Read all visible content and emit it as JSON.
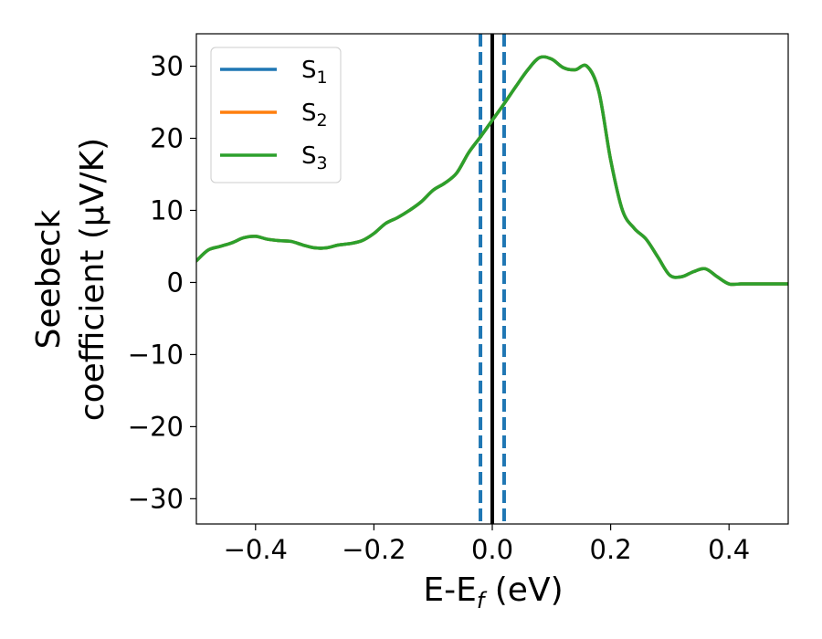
{
  "chart_data": {
    "type": "line",
    "xlabel": {
      "main": "E-E",
      "sub": "f",
      "unit": " (eV)"
    },
    "ylabel": {
      "line1": "Seebeck",
      "line2": "coefficient  (μV/K)"
    },
    "xlim": [
      -0.5,
      0.5
    ],
    "ylim": [
      -33.5,
      34.5
    ],
    "xticks": [
      -0.4,
      -0.2,
      0.0,
      0.2,
      0.4
    ],
    "xtick_labels": [
      "−0.4",
      "−0.2",
      "0.0",
      "0.2",
      "0.4"
    ],
    "yticks": [
      -30,
      -20,
      -10,
      0,
      10,
      20,
      30
    ],
    "ytick_labels": [
      "−30",
      "−20",
      "−10",
      "0",
      "10",
      "20",
      "30"
    ],
    "legend_position": "top-left",
    "vertical_lines": [
      {
        "x": 0.0,
        "style": "solid",
        "color": "#000000"
      },
      {
        "x": -0.02,
        "style": "dashed",
        "color": "#1f77b4"
      },
      {
        "x": 0.02,
        "style": "dashed",
        "color": "#1f77b4"
      }
    ],
    "x": [
      -0.5,
      -0.48,
      -0.46,
      -0.44,
      -0.42,
      -0.4,
      -0.38,
      -0.36,
      -0.34,
      -0.32,
      -0.3,
      -0.28,
      -0.26,
      -0.24,
      -0.22,
      -0.2,
      -0.18,
      -0.16,
      -0.14,
      -0.12,
      -0.1,
      -0.08,
      -0.06,
      -0.04,
      -0.02,
      0.0,
      0.02,
      0.04,
      0.06,
      0.08,
      0.1,
      0.12,
      0.14,
      0.16,
      0.18,
      0.2,
      0.22,
      0.24,
      0.26,
      0.28,
      0.3,
      0.32,
      0.34,
      0.36,
      0.38,
      0.4,
      0.42,
      0.44,
      0.46,
      0.48,
      0.5
    ],
    "series": [
      {
        "name": "S",
        "sub": "1",
        "color": "#1f77b4",
        "values": [
          3.0,
          4.5,
          5.0,
          5.5,
          6.2,
          6.4,
          6.0,
          5.8,
          5.7,
          5.2,
          4.8,
          4.8,
          5.2,
          5.4,
          5.8,
          6.8,
          8.2,
          9.0,
          10.0,
          11.2,
          12.8,
          13.8,
          15.2,
          18.0,
          20.2,
          22.5,
          24.8,
          27.2,
          29.5,
          31.2,
          31.0,
          29.8,
          29.5,
          30.0,
          26.5,
          17.0,
          10.0,
          7.5,
          6.0,
          3.5,
          1.0,
          0.8,
          1.5,
          1.9,
          0.8,
          -0.2,
          -0.2,
          -0.2,
          -0.2,
          -0.2,
          -0.2
        ]
      },
      {
        "name": "S",
        "sub": "2",
        "color": "#ff7f0e",
        "values": [
          3.0,
          4.5,
          5.0,
          5.5,
          6.2,
          6.4,
          6.0,
          5.8,
          5.7,
          5.2,
          4.8,
          4.8,
          5.2,
          5.4,
          5.8,
          6.8,
          8.2,
          9.0,
          10.0,
          11.2,
          12.8,
          13.8,
          15.2,
          18.0,
          20.2,
          22.5,
          24.8,
          27.2,
          29.5,
          31.2,
          31.0,
          29.8,
          29.5,
          30.0,
          26.5,
          17.0,
          10.0,
          7.5,
          6.0,
          3.5,
          1.0,
          0.8,
          1.5,
          1.9,
          0.8,
          -0.2,
          -0.2,
          -0.2,
          -0.2,
          -0.2,
          -0.2
        ]
      },
      {
        "name": "S",
        "sub": "3",
        "color": "#2ca02c",
        "values": [
          3.0,
          4.5,
          5.0,
          5.5,
          6.2,
          6.4,
          6.0,
          5.8,
          5.7,
          5.2,
          4.8,
          4.8,
          5.2,
          5.4,
          5.8,
          6.8,
          8.2,
          9.0,
          10.0,
          11.2,
          12.8,
          13.8,
          15.2,
          18.0,
          20.2,
          22.5,
          24.8,
          27.2,
          29.5,
          31.2,
          31.0,
          29.8,
          29.5,
          30.0,
          26.5,
          17.0,
          10.0,
          7.5,
          6.0,
          3.5,
          1.0,
          0.8,
          1.5,
          1.9,
          0.8,
          -0.2,
          -0.2,
          -0.2,
          -0.2,
          -0.2,
          -0.2
        ]
      }
    ]
  }
}
